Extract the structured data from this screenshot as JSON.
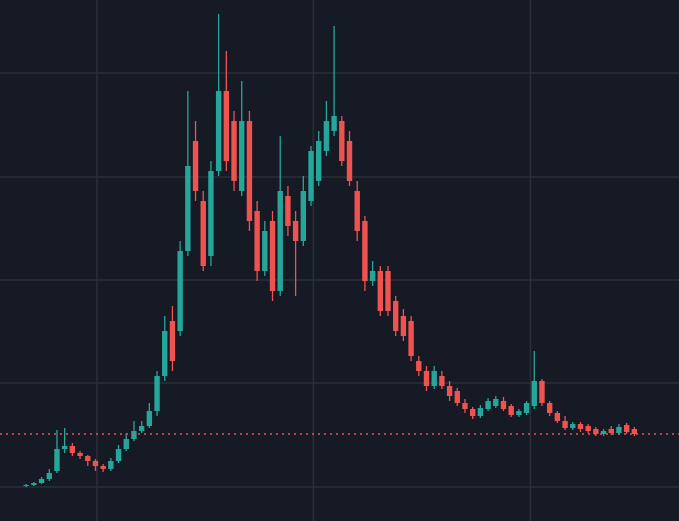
{
  "chart_data": {
    "type": "candlestick",
    "x": [
      0,
      1,
      2,
      3,
      4,
      5,
      6,
      7,
      8,
      9,
      10,
      11,
      12,
      13,
      14,
      15,
      16,
      17,
      18,
      19,
      20,
      21,
      22,
      23,
      24,
      25,
      26,
      27,
      28,
      29,
      30,
      31,
      32,
      33,
      34,
      35,
      36,
      37,
      38,
      39,
      40,
      41,
      42,
      43,
      44,
      45,
      46,
      47,
      48,
      49,
      50,
      51,
      52,
      53,
      54,
      55,
      56,
      57,
      58,
      59,
      60,
      61,
      62,
      63,
      64,
      65,
      66,
      67,
      68,
      69,
      70,
      71,
      72,
      73,
      74,
      75,
      76,
      77,
      78,
      79
    ],
    "open": [
      35,
      36,
      38,
      42,
      50,
      72,
      75,
      68,
      65,
      60,
      55,
      52,
      60,
      72,
      82,
      90,
      95,
      110,
      145,
      200,
      190,
      270,
      380,
      320,
      265,
      350,
      430,
      400,
      330,
      400,
      310,
      250,
      300,
      230,
      325,
      300,
      280,
      320,
      340,
      370,
      390,
      400,
      380,
      330,
      300,
      240,
      250,
      250,
      220,
      205,
      200,
      160,
      150,
      135,
      145,
      135,
      130,
      118,
      112,
      105,
      112,
      115,
      120,
      115,
      106,
      108,
      115,
      140,
      118,
      108,
      100,
      93,
      97,
      95,
      92,
      87,
      92,
      88,
      96,
      92
    ],
    "high": [
      37,
      39,
      44,
      52,
      91,
      93,
      78,
      70,
      66,
      62,
      57,
      63,
      76,
      88,
      100,
      100,
      118,
      150,
      205,
      215,
      280,
      430,
      400,
      330,
      360,
      507,
      470,
      410,
      440,
      410,
      320,
      300,
      310,
      385,
      335,
      310,
      345,
      375,
      390,
      420,
      495,
      405,
      390,
      340,
      305,
      260,
      255,
      255,
      225,
      212,
      205,
      165,
      155,
      155,
      150,
      140,
      133,
      122,
      114,
      116,
      123,
      125,
      124,
      117,
      112,
      120,
      170,
      142,
      120,
      110,
      105,
      99,
      99,
      97,
      94,
      92,
      95,
      97,
      98,
      94
    ],
    "low": [
      34,
      35,
      37,
      40,
      48,
      68,
      65,
      62,
      55,
      50,
      49,
      50,
      58,
      70,
      80,
      88,
      93,
      105,
      140,
      150,
      185,
      265,
      320,
      250,
      255,
      345,
      350,
      330,
      325,
      290,
      240,
      245,
      220,
      225,
      285,
      225,
      275,
      315,
      335,
      365,
      385,
      355,
      335,
      280,
      230,
      235,
      205,
      205,
      185,
      180,
      160,
      145,
      130,
      132,
      132,
      120,
      115,
      108,
      102,
      103,
      110,
      113,
      110,
      104,
      104,
      106,
      112,
      115,
      105,
      98,
      91,
      91,
      89,
      88,
      85,
      85,
      86,
      86,
      87,
      85
    ],
    "close": [
      36,
      38,
      42,
      48,
      72,
      75,
      68,
      65,
      60,
      55,
      52,
      60,
      72,
      82,
      90,
      95,
      110,
      145,
      190,
      160,
      270,
      355,
      330,
      255,
      350,
      430,
      360,
      340,
      400,
      300,
      250,
      290,
      230,
      330,
      295,
      280,
      330,
      370,
      380,
      400,
      405,
      360,
      340,
      290,
      240,
      250,
      210,
      210,
      190,
      185,
      165,
      150,
      135,
      150,
      135,
      125,
      118,
      112,
      105,
      113,
      120,
      122,
      112,
      106,
      110,
      118,
      140,
      118,
      108,
      100,
      93,
      97,
      92,
      90,
      87,
      90,
      88,
      94,
      89,
      87
    ],
    "up_color": "#26a69a",
    "down_color": "#ef5350",
    "xlim": [
      -3.4,
      84.8
    ],
    "xticks": [
      9.2,
      37.3,
      65.5
    ],
    "ylim": [
      0,
      521
    ],
    "yticks": [
      34,
      138,
      241,
      344,
      448
    ],
    "grid": true,
    "price_line": 87,
    "price_line_color": "#ef5350"
  }
}
